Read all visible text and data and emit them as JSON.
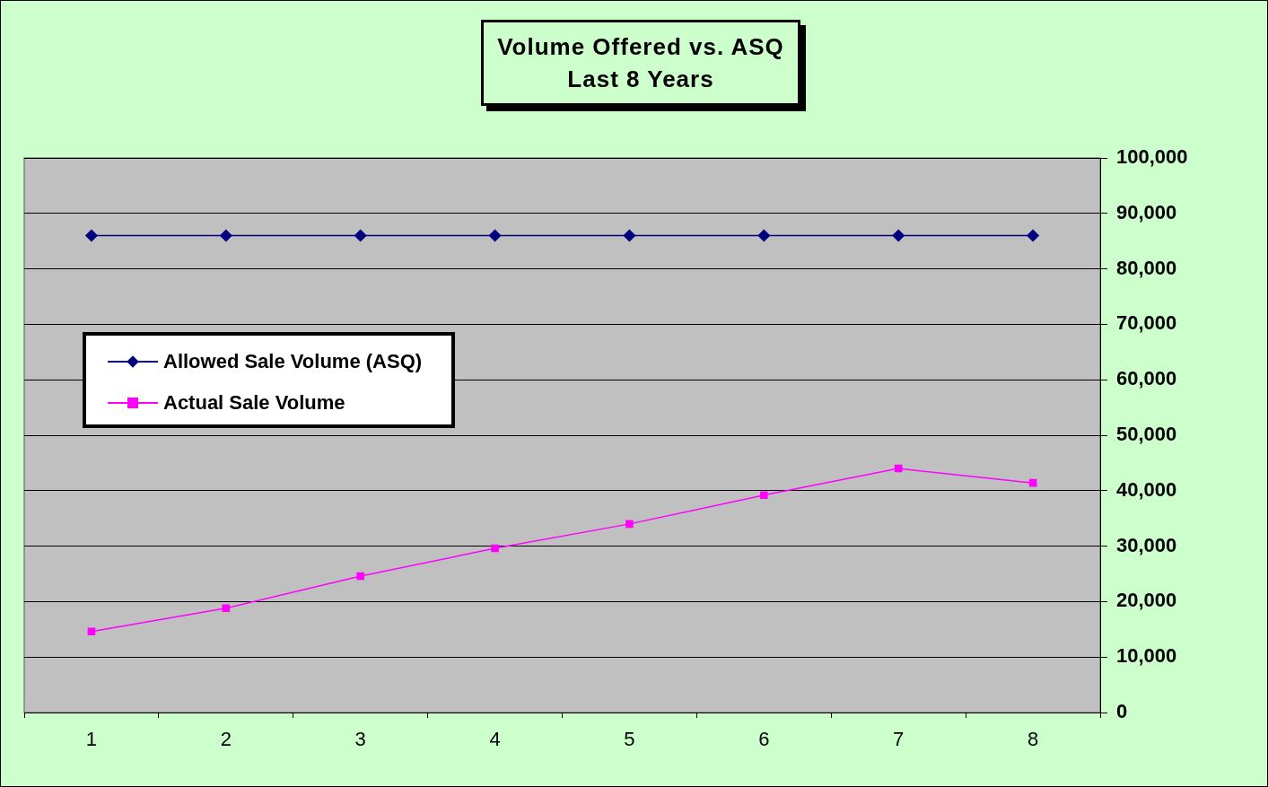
{
  "chart_data": {
    "type": "line",
    "title": "Volume Offered vs. ASQ",
    "subtitle": "Last 8 Years",
    "categories": [
      "1",
      "2",
      "3",
      "4",
      "5",
      "6",
      "7",
      "8"
    ],
    "series": [
      {
        "name": "Allowed Sale Volume (ASQ)",
        "color": "#000080",
        "marker": "diamond",
        "values": [
          86000,
          86000,
          86000,
          86000,
          86000,
          86000,
          86000,
          86000
        ]
      },
      {
        "name": "Actual Sale Volume",
        "color": "#ff00ff",
        "marker": "square",
        "values": [
          14600,
          18800,
          24600,
          29600,
          34000,
          39200,
          44000,
          41400
        ]
      }
    ],
    "ylim": [
      0,
      100000
    ],
    "yticks": [
      {
        "value": 0,
        "label": "0"
      },
      {
        "value": 10000,
        "label": "10,000"
      },
      {
        "value": 20000,
        "label": "20,000"
      },
      {
        "value": 30000,
        "label": "30,000"
      },
      {
        "value": 40000,
        "label": "40,000"
      },
      {
        "value": 50000,
        "label": "50,000"
      },
      {
        "value": 60000,
        "label": "60,000"
      },
      {
        "value": 70000,
        "label": "70,000"
      },
      {
        "value": 80000,
        "label": "80,000"
      },
      {
        "value": 90000,
        "label": "90,000"
      },
      {
        "value": 100000,
        "label": "100,000"
      }
    ],
    "grid": "y",
    "legend": "left",
    "line_style": "solid"
  }
}
